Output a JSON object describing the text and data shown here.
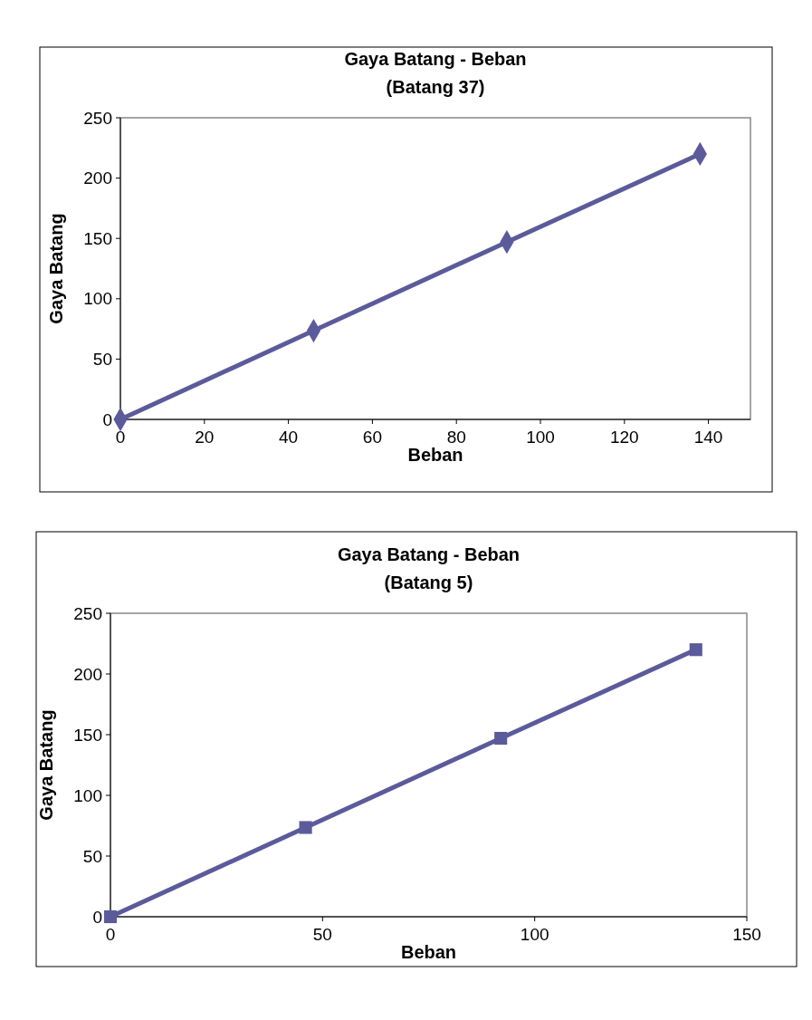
{
  "chart_data": [
    {
      "type": "line",
      "title": "Gaya Batang - Beban",
      "subtitle": "(Batang 37)",
      "xlabel": "Beban",
      "ylabel": "Gaya Batang",
      "x": [
        0,
        46,
        92,
        138
      ],
      "series": [
        {
          "color": "#5b5b9b",
          "values": [
            0,
            73.5,
            147,
            220
          ]
        }
      ],
      "xlim": [
        0,
        150
      ],
      "xticks": [
        0,
        20,
        40,
        60,
        80,
        100,
        120,
        140
      ],
      "ylim": [
        0,
        250
      ],
      "yticks": [
        0,
        50,
        100,
        150,
        200,
        250
      ],
      "grid": false,
      "marker": "diamond",
      "line_style": "solid"
    },
    {
      "type": "line",
      "title": "Gaya Batang - Beban",
      "subtitle": "(Batang 5)",
      "xlabel": "Beban",
      "ylabel": "Gaya Batang",
      "x": [
        0,
        46,
        92,
        138
      ],
      "series": [
        {
          "color": "#5b5b9b",
          "values": [
            0,
            73.5,
            147,
            220
          ]
        }
      ],
      "xlim": [
        0,
        150
      ],
      "xticks": [
        0,
        50,
        100,
        150
      ],
      "ylim": [
        0,
        250
      ],
      "yticks": [
        0,
        50,
        100,
        150,
        200,
        250
      ],
      "grid": false,
      "marker": "square",
      "line_style": "solid"
    }
  ]
}
